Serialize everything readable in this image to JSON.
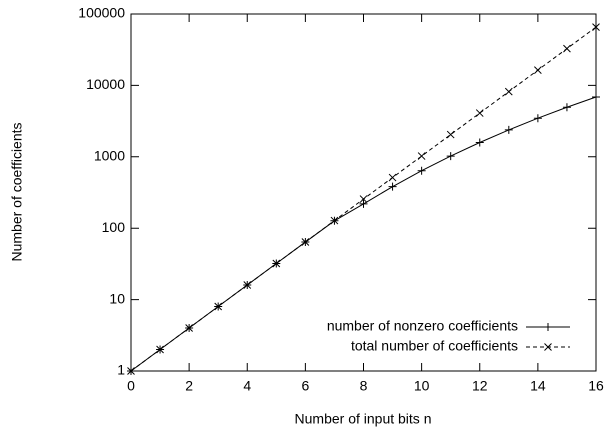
{
  "chart_data": {
    "type": "line",
    "x_label": "Number of input bits n",
    "y_label": "Number of coefficients",
    "x": [
      0,
      1,
      2,
      3,
      4,
      5,
      6,
      7,
      8,
      9,
      10,
      11,
      12,
      13,
      14,
      15,
      16
    ],
    "series": [
      {
        "name": "number of nonzero coefficients",
        "color": "#000000",
        "line_style": "solid",
        "marker": "plus",
        "values": [
          1,
          2,
          4,
          8,
          16,
          32,
          64,
          127,
          219,
          382,
          638,
          1024,
          1586,
          2380,
          3473,
          4944,
          6885
        ]
      },
      {
        "name": "total number of coefficients",
        "color": "#000000",
        "line_style": "dashed",
        "marker": "cross",
        "values": [
          1,
          2,
          4,
          8,
          16,
          32,
          64,
          128,
          256,
          512,
          1024,
          2048,
          4096,
          8192,
          16384,
          32768,
          65536
        ]
      }
    ],
    "xlim": [
      0,
      16
    ],
    "xticks": [
      0,
      2,
      4,
      6,
      8,
      10,
      12,
      14,
      16
    ],
    "ylim": [
      1,
      100000
    ],
    "yticks": [
      1,
      10,
      100,
      1000,
      10000,
      100000
    ],
    "ylog": true,
    "grid": false,
    "legend": "lower right"
  }
}
